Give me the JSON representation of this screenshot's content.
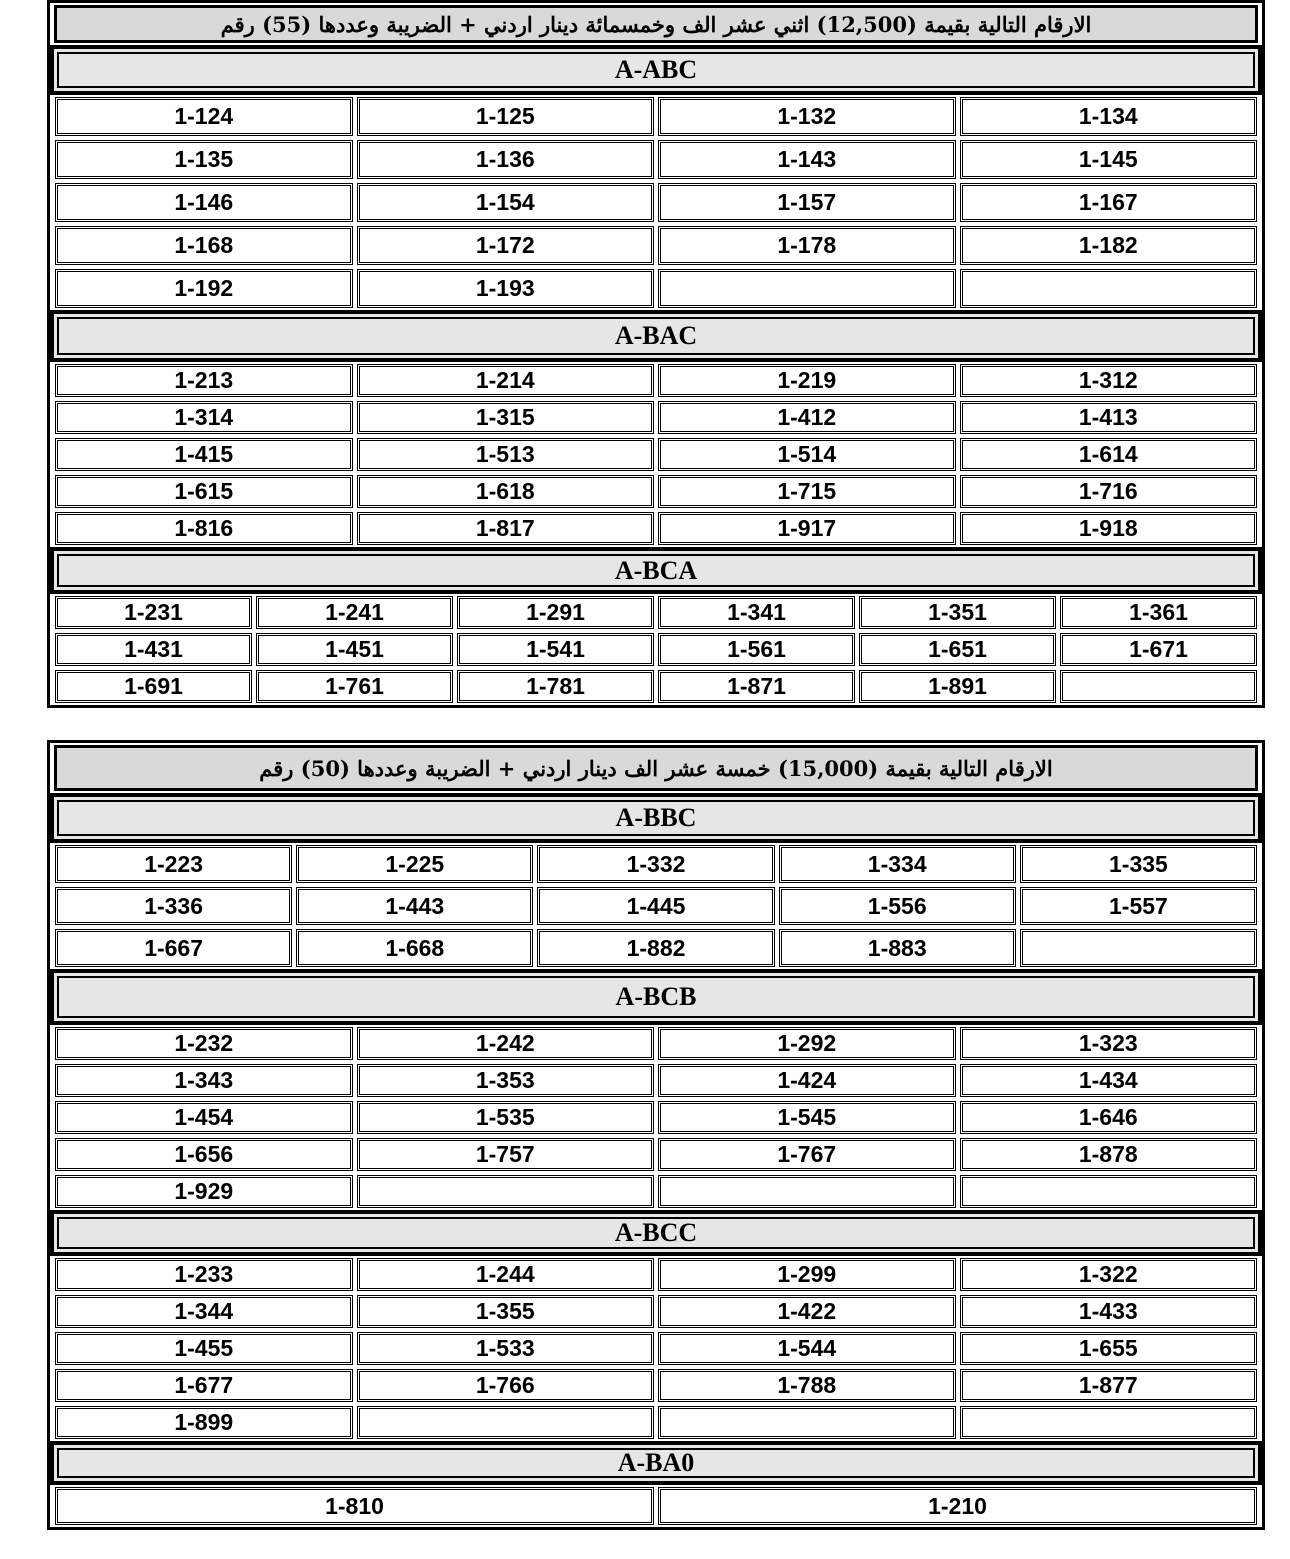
{
  "groups": [
    {
      "title": "الارقام التالية بقيمة (12,500) اثني عشر الف وخمسمائة دينار اردني + الضريبة وعددها (55) رقم",
      "blocks": [
        {
          "code": "A-ABC",
          "cols": 4,
          "rows": [
            [
              "1-124",
              "1-125",
              "1-132",
              "1-134"
            ],
            [
              "1-135",
              "1-136",
              "1-143",
              "1-145"
            ],
            [
              "1-146",
              "1-154",
              "1-157",
              "1-167"
            ],
            [
              "1-168",
              "1-172",
              "1-178",
              "1-182"
            ],
            [
              "1-192",
              "1-193",
              "",
              ""
            ]
          ]
        },
        {
          "code": "A-BAC",
          "cols": 4,
          "rows": [
            [
              "1-213",
              "1-214",
              "1-219",
              "1-312"
            ],
            [
              "1-314",
              "1-315",
              "1-412",
              "1-413"
            ],
            [
              "1-415",
              "1-513",
              "1-514",
              "1-614"
            ],
            [
              "1-615",
              "1-618",
              "1-715",
              "1-716"
            ],
            [
              "1-816",
              "1-817",
              "1-917",
              "1-918"
            ]
          ]
        },
        {
          "code": "A-BCA",
          "cols": 6,
          "rows": [
            [
              "1-231",
              "1-241",
              "1-291",
              "1-341",
              "1-351",
              "1-361"
            ],
            [
              "1-431",
              "1-451",
              "1-541",
              "1-561",
              "1-651",
              "1-671"
            ],
            [
              "1-691",
              "1-761",
              "1-781",
              "1-871",
              "1-891",
              ""
            ]
          ]
        }
      ]
    },
    {
      "title": "الارقام التالية بقيمة (15,000) خمسة عشر الف دينار اردني + الضريبة وعددها (50) رقم",
      "blocks": [
        {
          "code": "A-BBC",
          "cols": 5,
          "rows": [
            [
              "1-223",
              "1-225",
              "1-332",
              "1-334",
              "1-335"
            ],
            [
              "1-336",
              "1-443",
              "1-445",
              "1-556",
              "1-557"
            ],
            [
              "1-667",
              "1-668",
              "1-882",
              "1-883",
              ""
            ]
          ]
        },
        {
          "code": "A-BCB",
          "cols": 4,
          "rows": [
            [
              "1-232",
              "1-242",
              "1-292",
              "1-323"
            ],
            [
              "1-343",
              "1-353",
              "1-424",
              "1-434"
            ],
            [
              "1-454",
              "1-535",
              "1-545",
              "1-646"
            ],
            [
              "1-656",
              "1-757",
              "1-767",
              "1-878"
            ],
            [
              "1-929",
              "",
              "",
              ""
            ]
          ]
        },
        {
          "code": "A-BCC",
          "cols": 4,
          "rows": [
            [
              "1-233",
              "1-244",
              "1-299",
              "1-322"
            ],
            [
              "1-344",
              "1-355",
              "1-422",
              "1-433"
            ],
            [
              "1-455",
              "1-533",
              "1-544",
              "1-655"
            ],
            [
              "1-677",
              "1-766",
              "1-788",
              "1-877"
            ],
            [
              "1-899",
              "",
              "",
              ""
            ]
          ]
        },
        {
          "code": "A-BA0",
          "cols": 2,
          "rows": [
            [
              "1-810",
              "1-210"
            ]
          ]
        }
      ]
    }
  ]
}
